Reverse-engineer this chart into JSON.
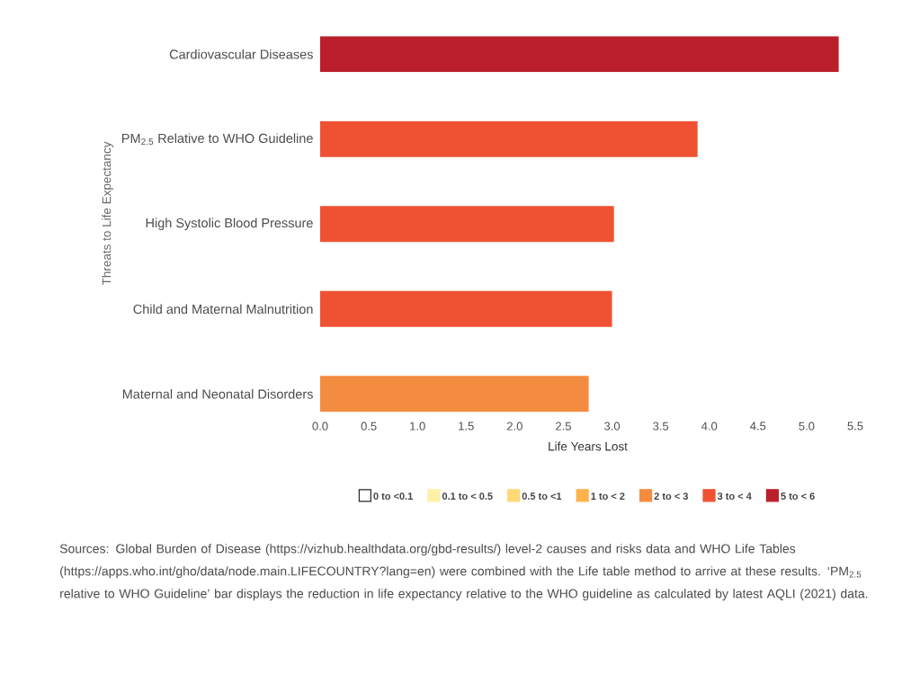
{
  "chart_data": {
    "type": "bar",
    "orientation": "horizontal",
    "categories": [
      "Cardiovascular Diseases",
      "PM$_{2.5}$ Relative to WHO Guideline",
      "High Systolic Blood Pressure",
      "Child and Maternal Malnutrition",
      "Maternal and Neonatal Disorders"
    ],
    "series": [
      {
        "name": "0 to <0.1",
        "color": "#ffffff",
        "values": [
          null,
          null,
          null,
          null,
          null
        ]
      },
      {
        "name": "0.1 to < 0.5",
        "color": "#fff0a8",
        "values": [
          null,
          null,
          null,
          null,
          null
        ]
      },
      {
        "name": "0.5 to <1",
        "color": "#fed976",
        "values": [
          null,
          null,
          null,
          null,
          null
        ]
      },
      {
        "name": "1 to < 2",
        "color": "#feb24c",
        "values": [
          null,
          null,
          null,
          null,
          null
        ]
      },
      {
        "name": "2 to < 3",
        "color": "#f48c40",
        "values": [
          null,
          null,
          null,
          null,
          2.76
        ]
      },
      {
        "name": "3 to < 4",
        "color": "#ef5233",
        "values": [
          null,
          3.88,
          3.02,
          3.0,
          null
        ]
      },
      {
        "name": "5 to < 6",
        "color": "#bb1f2b",
        "values": [
          5.33,
          null,
          null,
          null,
          null
        ]
      }
    ],
    "xlim": [
      0,
      5.5
    ],
    "xticks": [
      {
        "value": 0,
        "label": "0.0"
      },
      0.5,
      {
        "value": 1,
        "label": "1.0"
      },
      1.5,
      {
        "value": 2,
        "label": "2.0"
      },
      2.5,
      {
        "value": 3,
        "label": "3.0"
      },
      3.5,
      {
        "value": 4,
        "label": "4.0"
      },
      4.5,
      {
        "value": 5,
        "label": "5.0"
      },
      5.5
    ],
    "xlabel": "Life Years Lost",
    "ylabel": "Threats to Life Expectancy",
    "legend": "bottom",
    "grid": false,
    "annotations": [
      "Sources: Global Burden of Disease (https://vizhub.healthdata.org/gbd-results/) level-2 causes and risks data and WHO Life Tables (https://apps.who.int/gho/data/node.main.LIFECOUNTRY?lang=en) were combined with the Life table method to arrive at these results. ‘PM$_{2.5}$ relative to WHO Guideline’ bar displays the reduction in life expectancy relative to the WHO guideline as calculated by latest AQLI (2021) data."
    ]
  }
}
